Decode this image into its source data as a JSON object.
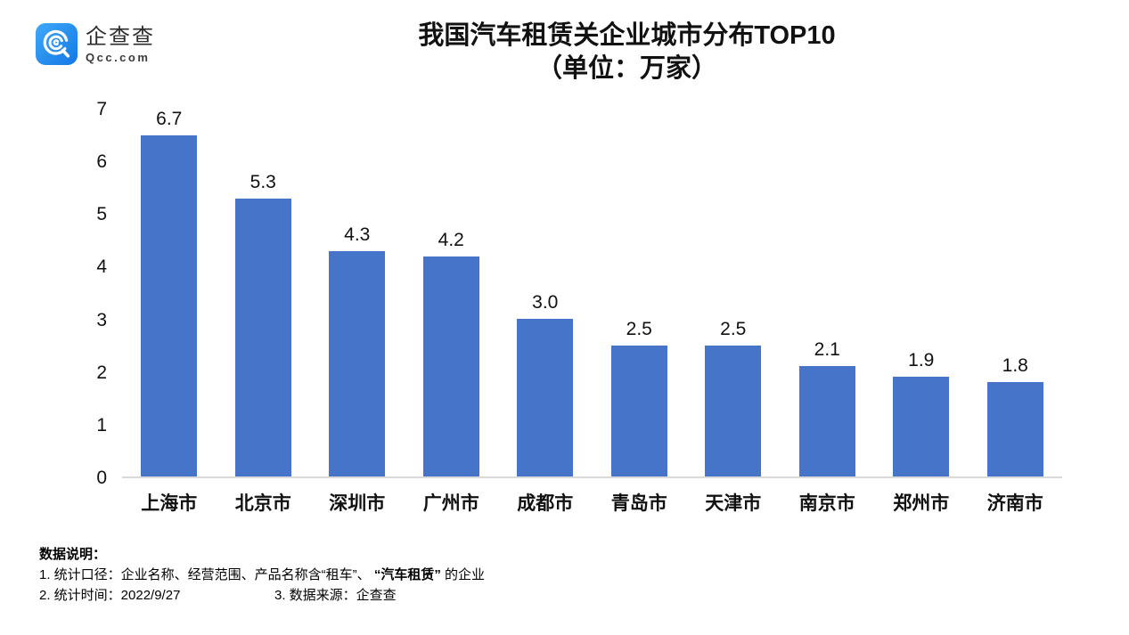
{
  "logo": {
    "name": "企查查",
    "domain": "Qcc.com"
  },
  "title": {
    "line1": "我国汽车租赁关企业城市分布TOP10",
    "line2": "（单位：万家）"
  },
  "chart_data": {
    "type": "bar",
    "title": "我国汽车租赁关企业城市分布TOP10（单位：万家）",
    "categories": [
      "上海市",
      "北京市",
      "深圳市",
      "广州市",
      "成都市",
      "青岛市",
      "天津市",
      "南京市",
      "郑州市",
      "济南市"
    ],
    "values": [
      6.7,
      5.3,
      4.3,
      4.2,
      3.0,
      2.5,
      2.5,
      2.1,
      1.9,
      1.8
    ],
    "value_labels": [
      "6.7",
      "5.3",
      "4.3",
      "4.2",
      "3.0",
      "2.5",
      "2.5",
      "2.1",
      "1.9",
      "1.8"
    ],
    "xlabel": "",
    "ylabel": "",
    "ylim": [
      0,
      7
    ],
    "yticks": [
      7,
      6,
      5,
      4,
      3,
      2,
      1,
      0
    ],
    "grid": false,
    "legend_position": "none",
    "bar_color": "#4574C8"
  },
  "colors": {
    "bar": "#4574C8",
    "axis_line": "#D9D9D9",
    "text": "#111111",
    "logo_blue_top": "#3FA8F8",
    "logo_blue_bottom": "#1478E6"
  },
  "footer": {
    "heading": "数据说明：",
    "line1_prefix": "1. 统计口径：企业名称、经营范围、产品名称含“租车”、 ",
    "line1_bold": "“汽车租赁”",
    "line1_suffix": " 的企业",
    "line2a": "2. 统计时间：2022/9/27",
    "line2b": "3. 数据来源：企查查"
  }
}
